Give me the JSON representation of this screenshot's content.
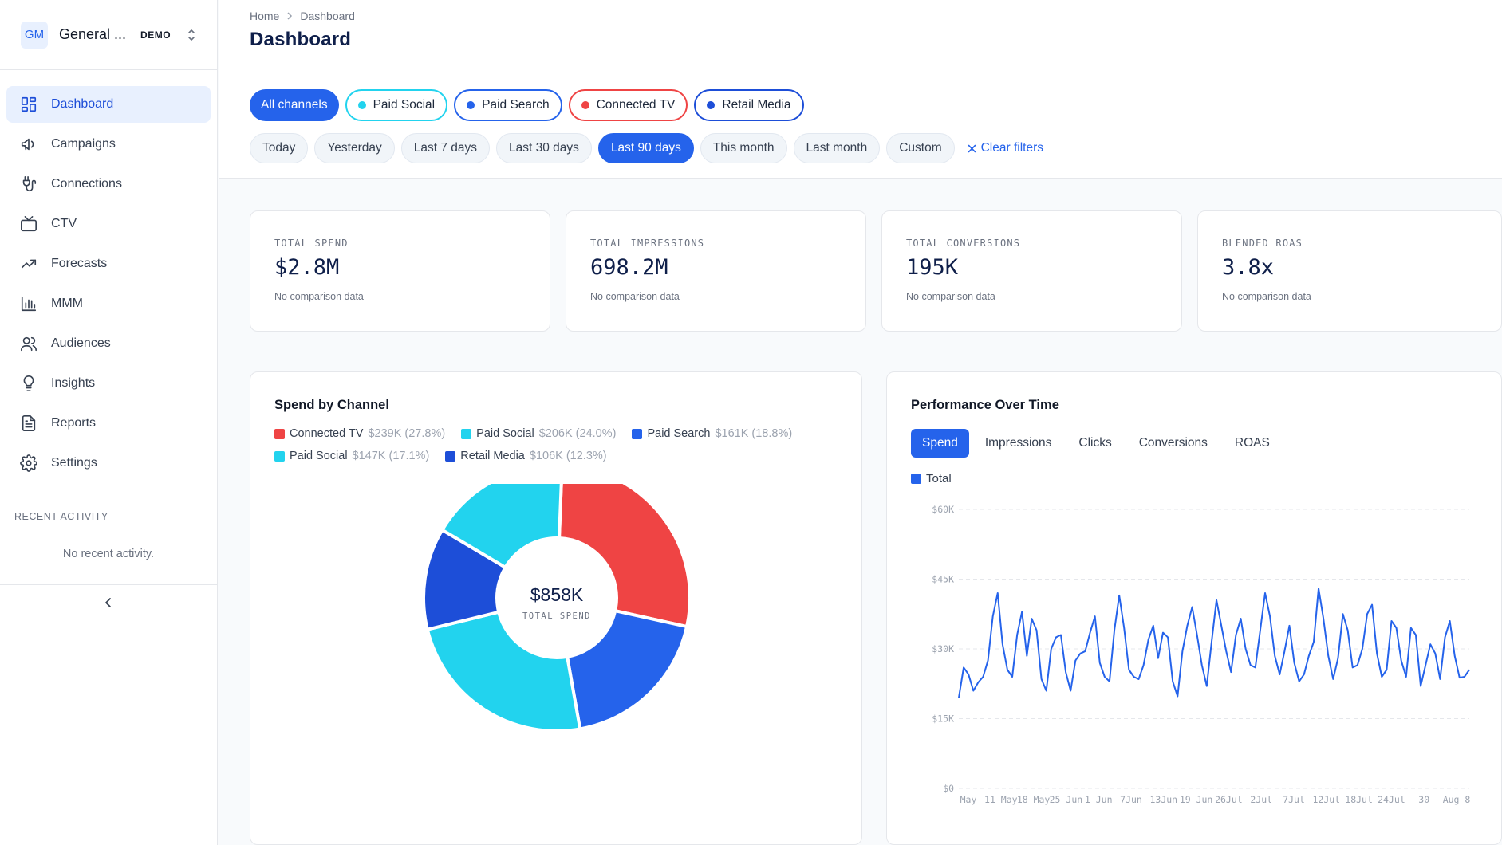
{
  "org": {
    "initials": "GM",
    "name": "General ...",
    "badge": "DEMO"
  },
  "nav": [
    {
      "label": "Dashboard",
      "icon": "dashboard-grid-icon",
      "active": true
    },
    {
      "label": "Campaigns",
      "icon": "megaphone-icon"
    },
    {
      "label": "Connections",
      "icon": "plug-icon"
    },
    {
      "label": "CTV",
      "icon": "tv-icon"
    },
    {
      "label": "Forecasts",
      "icon": "trending-up-icon"
    },
    {
      "label": "MMM",
      "icon": "bar-chart-icon"
    },
    {
      "label": "Audiences",
      "icon": "users-icon"
    },
    {
      "label": "Insights",
      "icon": "lightbulb-icon"
    },
    {
      "label": "Reports",
      "icon": "document-icon"
    },
    {
      "label": "Settings",
      "icon": "gear-icon"
    }
  ],
  "recent": {
    "title": "RECENT ACTIVITY",
    "empty": "No recent activity."
  },
  "breadcrumb": {
    "home": "Home",
    "current": "Dashboard"
  },
  "page_title": "Dashboard",
  "channel_filters": {
    "all": "All channels",
    "items": [
      {
        "label": "Paid Social",
        "color": "#22d3ee"
      },
      {
        "label": "Paid Search",
        "color": "#2563eb"
      },
      {
        "label": "Connected TV",
        "color": "#ef4444"
      },
      {
        "label": "Retail Media",
        "color": "#1d4ed8"
      }
    ]
  },
  "date_filters": [
    "Today",
    "Yesterday",
    "Last 7 days",
    "Last 30 days",
    "Last 90 days",
    "This month",
    "Last month",
    "Custom"
  ],
  "date_filter_active": "Last 90 days",
  "clear_filters": "Clear filters",
  "kpis": [
    {
      "label": "TOTAL SPEND",
      "value": "$2.8M",
      "sub": "No comparison data"
    },
    {
      "label": "TOTAL IMPRESSIONS",
      "value": "698.2M",
      "sub": "No comparison data"
    },
    {
      "label": "TOTAL CONVERSIONS",
      "value": "195K",
      "sub": "No comparison data"
    },
    {
      "label": "BLENDED ROAS",
      "value": "3.8x",
      "sub": "No comparison data"
    }
  ],
  "spend_panel": {
    "title": "Spend by Channel",
    "center_value": "$858K",
    "center_label": "TOTAL SPEND"
  },
  "perf_panel": {
    "title": "Performance Over Time",
    "tabs": [
      "Spend",
      "Impressions",
      "Clicks",
      "Conversions",
      "ROAS"
    ],
    "active_tab": "Spend",
    "legend": "Total"
  },
  "chart_data": [
    {
      "type": "pie",
      "title": "Spend by Channel",
      "labels": [
        "Connected TV",
        "Paid Social",
        "Paid Search",
        "Paid Social",
        "Retail Media"
      ],
      "values": [
        239,
        206,
        161,
        147,
        106
      ],
      "amount_labels": [
        "$239K (27.8%)",
        "$206K (24.0%)",
        "$161K (18.8%)",
        "$147K (17.1%)",
        "$106K (12.3%)"
      ],
      "colors": [
        "#ef4444",
        "#22d3ee",
        "#2563eb",
        "#22d3ee",
        "#1d4ed8"
      ],
      "slice_order": [
        0,
        2,
        1,
        4,
        3
      ],
      "legend_position": "top"
    },
    {
      "type": "line",
      "title": "Performance Over Time",
      "series": [
        {
          "name": "Total",
          "color": "#2563eb",
          "values": [
            19500,
            26000,
            24500,
            21000,
            22800,
            24000,
            27500,
            37000,
            42000,
            31000,
            25500,
            24000,
            33000,
            38000,
            28500,
            36500,
            34000,
            23500,
            21000,
            30000,
            32500,
            33000,
            25000,
            21000,
            27500,
            29000,
            29500,
            33500,
            37000,
            27000,
            24000,
            23000,
            34000,
            41500,
            34500,
            25500,
            24000,
            23500,
            26500,
            32000,
            35000,
            28000,
            33500,
            32500,
            23000,
            19800,
            29500,
            35000,
            39000,
            33000,
            26500,
            22000,
            31500,
            40500,
            35000,
            29500,
            25000,
            33000,
            36500,
            30000,
            26500,
            26000,
            34000,
            42000,
            37000,
            28500,
            24500,
            29500,
            35000,
            27000,
            23000,
            24500,
            28500,
            31500,
            43000,
            36500,
            28500,
            23500,
            28000,
            37500,
            34000,
            26000,
            26500,
            30000,
            37500,
            39500,
            29000,
            24000,
            25500,
            36000,
            34500,
            27500,
            24000,
            34500,
            33000,
            22000,
            26500,
            31000,
            29000,
            23500,
            32500,
            36000,
            28500,
            23800,
            24000,
            25500
          ]
        }
      ],
      "x_tick_labels": [
        "May",
        "11 May",
        "18 May",
        "25 Jun",
        "1 Jun",
        "7Jun",
        "13Jun",
        "19 Jun",
        "26Jul",
        "2Jul",
        "7Jul",
        "12Jul",
        "18Jul",
        "24Jul",
        "30",
        "Aug 8"
      ],
      "y_tick_labels": [
        "$0",
        "$15K",
        "$30K",
        "$45K",
        "$60K"
      ],
      "ylim": [
        0,
        60000
      ],
      "grid": true,
      "legend_position": "top-left"
    }
  ]
}
